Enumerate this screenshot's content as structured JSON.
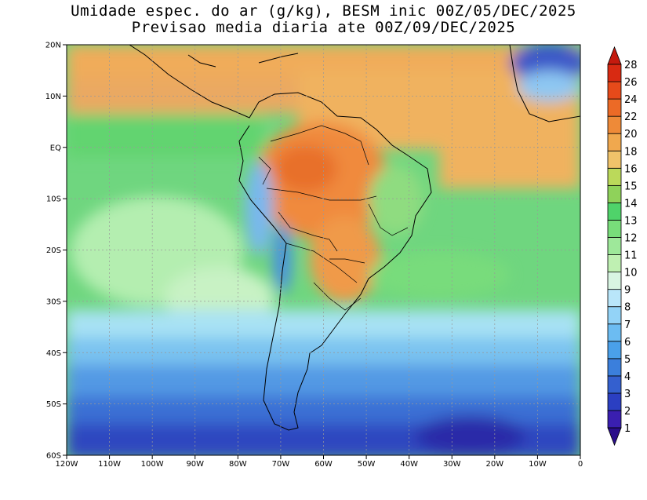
{
  "title": {
    "line1": "Umidade espec. do ar (g/kg), BESM inic 00Z/05/DEC/2025",
    "line2": "Previsao media diaria ate 00Z/09/DEC/2025"
  },
  "map": {
    "lon_range": [
      -120,
      0
    ],
    "lat_range": [
      -60,
      20
    ],
    "lat_ticks": [
      {
        "value": 20,
        "label": "20N"
      },
      {
        "value": 10,
        "label": "10N"
      },
      {
        "value": 0,
        "label": "EQ"
      },
      {
        "value": -10,
        "label": "10S"
      },
      {
        "value": -20,
        "label": "20S"
      },
      {
        "value": -30,
        "label": "30S"
      },
      {
        "value": -40,
        "label": "40S"
      },
      {
        "value": -50,
        "label": "50S"
      },
      {
        "value": -60,
        "label": "60S"
      }
    ],
    "lon_ticks": [
      {
        "value": -120,
        "label": "120W"
      },
      {
        "value": -110,
        "label": "110W"
      },
      {
        "value": -100,
        "label": "100W"
      },
      {
        "value": -90,
        "label": "90W"
      },
      {
        "value": -80,
        "label": "80W"
      },
      {
        "value": -70,
        "label": "70W"
      },
      {
        "value": -60,
        "label": "60W"
      },
      {
        "value": -50,
        "label": "50W"
      },
      {
        "value": -40,
        "label": "40W"
      },
      {
        "value": -30,
        "label": "30W"
      },
      {
        "value": -20,
        "label": "20W"
      },
      {
        "value": -10,
        "label": "10W"
      },
      {
        "value": 0,
        "label": "0"
      }
    ],
    "grid": true
  },
  "colorbar": {
    "levels": [
      "1",
      "2",
      "3",
      "4",
      "5",
      "6",
      "7",
      "8",
      "9",
      "10",
      "11",
      "12",
      "13",
      "14",
      "15",
      "16",
      "18",
      "20",
      "22",
      "24",
      "26",
      "28"
    ],
    "colors": [
      "#2a0d8a",
      "#3a1fb0",
      "#2b3fc2",
      "#3460cf",
      "#3b7fdc",
      "#4aa0ea",
      "#6cbcf2",
      "#93d3f7",
      "#b9e6fa",
      "#d8f5e2",
      "#bff0b2",
      "#9ee89a",
      "#78dd7a",
      "#4fd36a",
      "#8fd25a",
      "#bbd95a",
      "#f0c36a",
      "#f0a84e",
      "#ee8a38",
      "#ec6a26",
      "#e64a1a",
      "#d82a12",
      "#c41a0e"
    ]
  }
}
